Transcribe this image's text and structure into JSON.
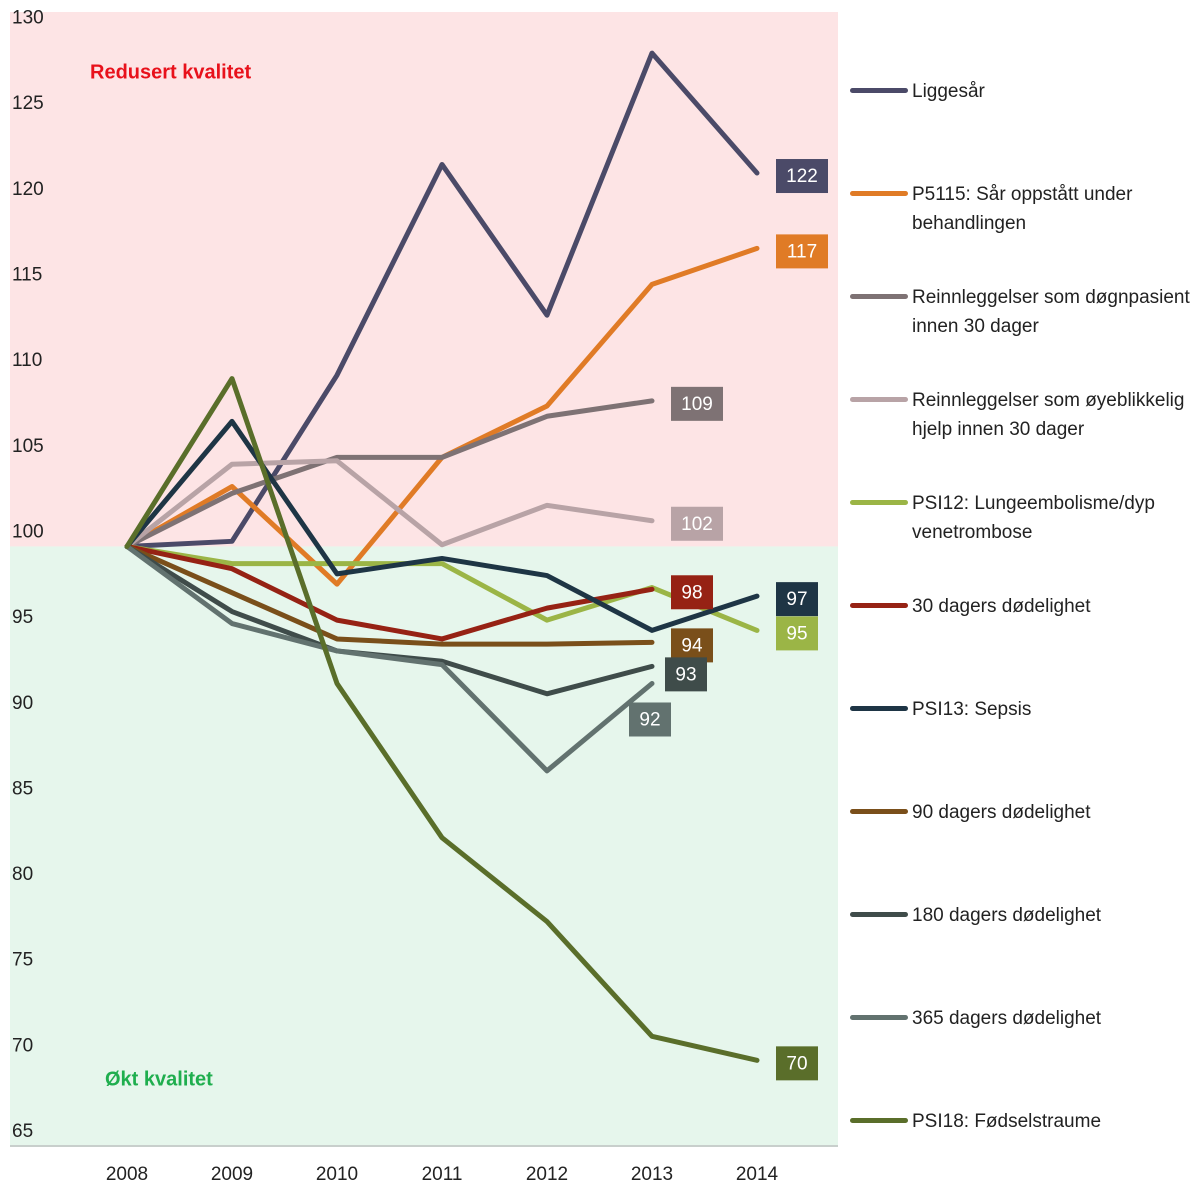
{
  "chart_data": {
    "type": "line",
    "x": [
      "2008",
      "2009",
      "2010",
      "2011",
      "2012",
      "2013",
      "2014"
    ],
    "ylim": [
      65,
      131.2
    ],
    "yticks": [
      65,
      70,
      75,
      80,
      85,
      90,
      95,
      100,
      105,
      110,
      115,
      120,
      125,
      130
    ],
    "threshold": 100,
    "annotations": [
      {
        "text": "Redusert kvalitet",
        "color": "#e8111b"
      },
      {
        "text": "Økt kvalitet",
        "color": "#1fae4e"
      }
    ],
    "series": [
      {
        "name": "Liggesår",
        "color": "#4b4a68",
        "values": [
          100,
          100.3,
          110,
          122.3,
          113.5,
          128.8,
          121.8
        ],
        "value_labels": [
          null,
          null,
          null,
          null,
          null,
          null,
          "122"
        ]
      },
      {
        "name": "P5115: Sår oppstått under behandlingen",
        "color": "#e07b26",
        "values": [
          100,
          103.5,
          97.8,
          105.2,
          108.2,
          115.3,
          117.4
        ],
        "value_labels": [
          null,
          null,
          null,
          null,
          null,
          null,
          "117"
        ]
      },
      {
        "name": "Reinnleggelser som døgnpasient innen 30 dager",
        "color": "#7e7274",
        "values": [
          100,
          103.1,
          105.2,
          105.2,
          107.6,
          108.5,
          null
        ],
        "value_labels": [
          null,
          null,
          null,
          null,
          null,
          "109",
          null
        ]
      },
      {
        "name": "Reinnleggelser som øyeblikkelig hjelp innen 30 dager",
        "color": "#b8a3a6",
        "values": [
          100,
          104.8,
          105,
          100.1,
          102.4,
          101.5,
          null
        ],
        "value_labels": [
          null,
          null,
          null,
          null,
          null,
          "102",
          null
        ]
      },
      {
        "name": "PSI12: Lungeembolisme/dyp venetrombose",
        "color": "#9bb546",
        "values": [
          100,
          99,
          99,
          99,
          95.7,
          97.6,
          95.1
        ],
        "value_labels": [
          null,
          null,
          null,
          null,
          null,
          null,
          "95"
        ]
      },
      {
        "name": "30 dagers dødelighet",
        "color": "#962214",
        "values": [
          100,
          98.7,
          95.7,
          94.6,
          96.4,
          97.5,
          null
        ],
        "value_labels": [
          null,
          null,
          null,
          null,
          null,
          "98",
          null
        ]
      },
      {
        "name": "PSI13: Sepsis",
        "color": "#1e3545",
        "values": [
          100,
          107.3,
          98.4,
          99.3,
          98.3,
          95.1,
          97.1
        ],
        "value_labels": [
          null,
          null,
          null,
          null,
          null,
          null,
          "97"
        ]
      },
      {
        "name": "90 dagers dødelighet",
        "color": "#7a4f1a",
        "values": [
          100,
          97.3,
          94.6,
          94.3,
          94.3,
          94.4,
          null
        ],
        "value_labels": [
          null,
          null,
          null,
          null,
          null,
          "94",
          null
        ]
      },
      {
        "name": "180 dagers dødelighet",
        "color": "#3f4c4a",
        "values": [
          100,
          96.2,
          93.9,
          93.3,
          91.4,
          93,
          null
        ],
        "value_labels": [
          null,
          null,
          null,
          null,
          null,
          "93",
          null
        ]
      },
      {
        "name": "365 dagers dødelighet",
        "color": "#62726f",
        "values": [
          100,
          95.5,
          93.9,
          93.1,
          86.9,
          92,
          null
        ],
        "value_labels": [
          null,
          null,
          null,
          null,
          null,
          "92",
          null
        ]
      },
      {
        "name": "PSI18: Fødselstraume",
        "color": "#5a6e2a",
        "values": [
          100,
          109.8,
          92,
          83,
          78.1,
          71.4,
          70
        ],
        "value_labels": [
          null,
          null,
          null,
          null,
          null,
          null,
          "70"
        ]
      }
    ]
  }
}
